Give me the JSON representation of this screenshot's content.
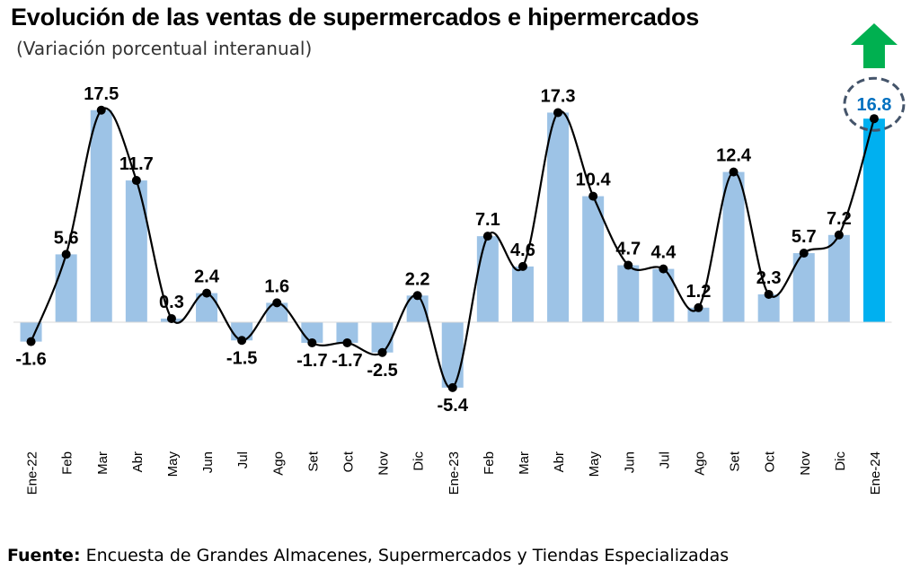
{
  "header": {
    "title": "Evolución de las ventas de supermercados e hipermercados",
    "subtitle": "(Variación porcentual interanual)"
  },
  "footer": {
    "source_label": "Fuente:",
    "source_text": " Encuesta de Grandes Almacenes, Supermercados y Tiendas Especializadas"
  },
  "colors": {
    "bar": "#9DC3E6",
    "bar_highlight": "#00B0F0",
    "line": "#000000",
    "arrow": "#00B050",
    "highlight_label": "#0070C0",
    "ring": "#44546A"
  },
  "icons": {
    "trend": "up-arrow-icon"
  },
  "chart_data": {
    "type": "bar",
    "title": "Evolución de las ventas de supermercados e hipermercados",
    "subtitle": "(Variación porcentual interanual)",
    "categories": [
      "Ene-22",
      "Feb",
      "Mar",
      "Abr",
      "May",
      "Jun",
      "Jul",
      "Ago",
      "Set",
      "Oct",
      "Nov",
      "Dic",
      "Ene-23",
      "Feb",
      "Mar",
      "Abr",
      "May",
      "Jun",
      "Jul",
      "Ago",
      "Set",
      "Oct",
      "Nov",
      "Dic",
      "Ene-24"
    ],
    "values": [
      -1.6,
      5.6,
      17.5,
      11.7,
      0.3,
      2.4,
      -1.5,
      1.6,
      -1.7,
      -1.7,
      -2.5,
      2.2,
      -5.4,
      7.1,
      4.6,
      17.3,
      10.4,
      4.7,
      4.4,
      1.2,
      12.4,
      2.3,
      5.7,
      7.2,
      16.8
    ],
    "labels": [
      "-1.6",
      "5.6",
      "17.5",
      "11.7",
      "0.3",
      "2.4",
      "-1.5",
      "1.6",
      "-1.7",
      "-1.7",
      "-2.5",
      "2.2",
      "-5.4",
      "7.1",
      "4.6",
      "17.3",
      "10.4",
      "4.7",
      "4.4",
      "1.2",
      "12.4",
      "2.3",
      "5.7",
      "7.2",
      "16.8"
    ],
    "overlay": "smoothed line with markers through the same values",
    "highlight_index": 24,
    "ylim": [
      -9,
      20
    ],
    "grid": false,
    "legend": "none",
    "xlabel": "",
    "ylabel": ""
  }
}
